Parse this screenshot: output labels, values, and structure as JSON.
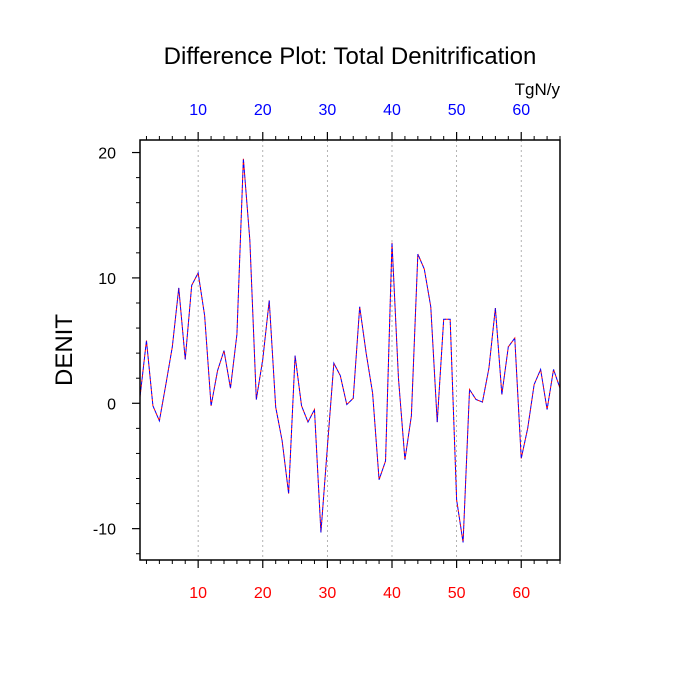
{
  "chart_data": {
    "type": "line",
    "title": "Difference Plot: Total Denitrification",
    "units": "TgN/y",
    "ylabel": "DENIT",
    "xlabel": "",
    "xlim": [
      1,
      66
    ],
    "ylim": [
      -12.5,
      21
    ],
    "x_ticks": [
      10,
      20,
      30,
      40,
      50,
      60
    ],
    "x_tick_labels": [
      "10",
      "20",
      "30",
      "40",
      "50",
      "60"
    ],
    "y_ticks": [
      -10,
      0,
      10,
      20
    ],
    "y_tick_labels": [
      "-10",
      "0",
      "10",
      "20"
    ],
    "grid": "vertical dotted lines at x ticks",
    "colors": {
      "top_axis_labels": "#0000ff",
      "bottom_axis_labels": "#ff0000",
      "series_a": "#ff0000",
      "series_b": "#0000ff"
    },
    "x": [
      1,
      2,
      3,
      4,
      5,
      6,
      7,
      8,
      9,
      10,
      11,
      12,
      13,
      14,
      15,
      16,
      17,
      18,
      19,
      20,
      21,
      22,
      23,
      24,
      25,
      26,
      27,
      28,
      29,
      30,
      31,
      32,
      33,
      34,
      35,
      36,
      37,
      38,
      39,
      40,
      41,
      42,
      43,
      44,
      45,
      46,
      47,
      48,
      49,
      50,
      51,
      52,
      53,
      54,
      55,
      56,
      57,
      58,
      59,
      60,
      61,
      62,
      63,
      64,
      65,
      66
    ],
    "series": [
      {
        "values": [
          0.5,
          5.0,
          -0.2,
          -1.4,
          1.5,
          4.5,
          9.2,
          3.5,
          9.4,
          10.4,
          7.0,
          -0.2,
          2.6,
          4.2,
          1.2,
          5.5,
          19.5,
          13.0,
          0.3,
          3.5,
          8.2,
          -0.3,
          -3.0,
          -7.2,
          3.8,
          -0.2,
          -1.5,
          -0.5,
          -10.3,
          -3.5,
          3.2,
          2.2,
          -0.1,
          0.4,
          7.7,
          4.0,
          0.8,
          -6.1,
          -4.6,
          12.8,
          2.0,
          -4.5,
          -1.0,
          11.9,
          10.7,
          7.7,
          -1.5,
          6.7,
          6.7,
          -7.7,
          -11.1,
          1.1,
          0.3,
          0.1,
          2.8,
          7.6,
          0.7,
          4.5,
          5.2,
          -4.4,
          -2.0,
          1.5,
          2.7,
          -0.5,
          2.7,
          1.2
        ]
      },
      {
        "values": [
          0.5,
          5.0,
          -0.2,
          -1.4,
          1.5,
          4.5,
          9.2,
          3.5,
          9.4,
          10.4,
          7.0,
          -0.2,
          2.6,
          4.2,
          1.2,
          5.5,
          19.5,
          13.0,
          0.3,
          3.5,
          8.2,
          -0.3,
          -3.0,
          -7.2,
          3.8,
          -0.2,
          -1.5,
          -0.5,
          -10.3,
          -3.5,
          3.2,
          2.2,
          -0.1,
          0.4,
          7.7,
          4.0,
          0.8,
          -6.1,
          -4.6,
          12.8,
          2.0,
          -4.5,
          -1.0,
          11.9,
          10.7,
          7.7,
          -1.5,
          6.7,
          6.7,
          -7.7,
          -11.1,
          1.1,
          0.3,
          0.1,
          2.8,
          7.6,
          0.7,
          4.5,
          5.2,
          -4.4,
          -2.0,
          1.5,
          2.7,
          -0.5,
          2.7,
          1.2
        ]
      }
    ]
  }
}
